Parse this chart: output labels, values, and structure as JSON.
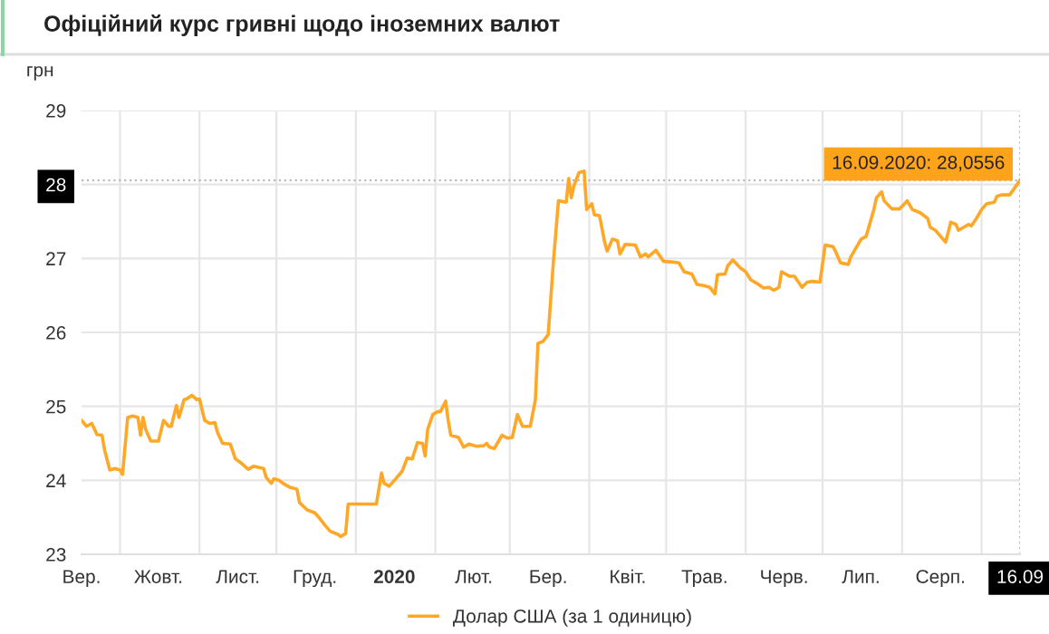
{
  "chart_data": {
    "type": "line",
    "title": "Офіційний курс гривні щодо іноземних валют",
    "ylabel": "грн",
    "xlim": [
      "2019-09-16",
      "2020-09-16"
    ],
    "ylim": [
      23,
      29
    ],
    "yticks": [
      23,
      24,
      25,
      26,
      27,
      28,
      29
    ],
    "xticks": [
      {
        "value": "2019-09-16",
        "label": "Вер."
      },
      {
        "value": "2019-10-01",
        "label": null
      },
      {
        "value": "2019-10-16",
        "label": "Жовт."
      },
      {
        "value": "2019-11-01",
        "label": null
      },
      {
        "value": "2019-11-16",
        "label": "Лист."
      },
      {
        "value": "2019-12-01",
        "label": null
      },
      {
        "value": "2019-12-16",
        "label": "Груд."
      },
      {
        "value": "2020-01-01",
        "label": null
      },
      {
        "value": "2020-01-16",
        "label": "2020"
      },
      {
        "value": "2020-02-01",
        "label": null
      },
      {
        "value": "2020-02-16",
        "label": "Лют."
      },
      {
        "value": "2020-03-01",
        "label": null
      },
      {
        "value": "2020-03-16",
        "label": "Бер."
      },
      {
        "value": "2020-04-01",
        "label": null
      },
      {
        "value": "2020-04-16",
        "label": "Квіт."
      },
      {
        "value": "2020-05-01",
        "label": null
      },
      {
        "value": "2020-05-16",
        "label": "Трав."
      },
      {
        "value": "2020-06-01",
        "label": null
      },
      {
        "value": "2020-06-16",
        "label": "Черв."
      },
      {
        "value": "2020-07-01",
        "label": null
      },
      {
        "value": "2020-07-16",
        "label": "Лип."
      },
      {
        "value": "2020-08-01",
        "label": null
      },
      {
        "value": "2020-08-16",
        "label": "Серп."
      },
      {
        "value": "2020-09-01",
        "label": null
      },
      {
        "value": "2020-09-16",
        "label": "16.09"
      }
    ],
    "grid": true,
    "ref_lines": [
      {
        "axis": "y",
        "value": 28.0556,
        "color": "#bbbbbb",
        "line_style": "dotted"
      },
      {
        "axis": "x",
        "value": "2020-09-16",
        "color": "#bbbbbb",
        "line_style": "dotted"
      }
    ],
    "legend": "bottom",
    "annotations": [
      {
        "text": "16.09.2020: 28,0556",
        "x": "2020-09-16",
        "y": 28.0556
      }
    ],
    "series": [
      {
        "name": "Долар США (за 1 одиницю)",
        "color": "#ffa726",
        "x": [
          "2019-09-16",
          "2019-09-18",
          "2019-09-20",
          "2019-09-22",
          "2019-09-24",
          "2019-09-25",
          "2019-09-27",
          "2019-09-29",
          "2019-10-01",
          "2019-10-02",
          "2019-10-04",
          "2019-10-06",
          "2019-10-08",
          "2019-10-09",
          "2019-10-10",
          "2019-10-11",
          "2019-10-13",
          "2019-10-16",
          "2019-10-18",
          "2019-10-20",
          "2019-10-21",
          "2019-10-23",
          "2019-10-24",
          "2019-10-26",
          "2019-10-27",
          "2019-10-29",
          "2019-10-31",
          "2019-11-01",
          "2019-11-03",
          "2019-11-05",
          "2019-11-07",
          "2019-11-08",
          "2019-11-10",
          "2019-11-13",
          "2019-11-15",
          "2019-11-17",
          "2019-11-20",
          "2019-11-22",
          "2019-11-26",
          "2019-11-27",
          "2019-11-29",
          "2019-11-30",
          "2019-12-02",
          "2019-12-04",
          "2019-12-06",
          "2019-12-09",
          "2019-12-10",
          "2019-12-13",
          "2019-12-16",
          "2019-12-18",
          "2019-12-20",
          "2019-12-22",
          "2019-12-25",
          "2019-12-26",
          "2019-12-28",
          "2019-12-29",
          "2020-01-01",
          "2020-01-06",
          "2020-01-09",
          "2020-01-11",
          "2020-01-12",
          "2020-01-14",
          "2020-01-16",
          "2020-01-18",
          "2020-01-19",
          "2020-01-21",
          "2020-01-23",
          "2020-01-25",
          "2020-01-27",
          "2020-01-28",
          "2020-01-29",
          "2020-01-31",
          "2020-02-02",
          "2020-02-03",
          "2020-02-05",
          "2020-02-06",
          "2020-02-07",
          "2020-02-10",
          "2020-02-12",
          "2020-02-14",
          "2020-02-17",
          "2020-02-20",
          "2020-02-21",
          "2020-02-22",
          "2020-02-24",
          "2020-02-27",
          "2020-02-29",
          "2020-03-02",
          "2020-03-04",
          "2020-03-06",
          "2020-03-09",
          "2020-03-11",
          "2020-03-12",
          "2020-03-14",
          "2020-03-16",
          "2020-03-18",
          "2020-03-20",
          "2020-03-23",
          "2020-03-24",
          "2020-03-25",
          "2020-03-26",
          "2020-03-28",
          "2020-03-30",
          "2020-03-31",
          "2020-04-02",
          "2020-04-03",
          "2020-04-05",
          "2020-04-07",
          "2020-04-08",
          "2020-04-10",
          "2020-04-12",
          "2020-04-13",
          "2020-04-15",
          "2020-04-19",
          "2020-04-21",
          "2020-04-23",
          "2020-04-24",
          "2020-04-27",
          "2020-04-30",
          "2020-05-04",
          "2020-05-06",
          "2020-05-08",
          "2020-05-11",
          "2020-05-13",
          "2020-05-16",
          "2020-05-18",
          "2020-05-20",
          "2020-05-21",
          "2020-05-24",
          "2020-05-25",
          "2020-05-27",
          "2020-05-30",
          "2020-06-01",
          "2020-06-03",
          "2020-06-06",
          "2020-06-08",
          "2020-06-10",
          "2020-06-12",
          "2020-06-14",
          "2020-06-15",
          "2020-06-18",
          "2020-06-20",
          "2020-06-21",
          "2020-06-23",
          "2020-06-25",
          "2020-06-27",
          "2020-06-30",
          "2020-07-02",
          "2020-07-05",
          "2020-07-06",
          "2020-07-08",
          "2020-07-11",
          "2020-07-12",
          "2020-07-14",
          "2020-07-16",
          "2020-07-18",
          "2020-07-21",
          "2020-07-22",
          "2020-07-24",
          "2020-07-25",
          "2020-07-28",
          "2020-07-31",
          "2020-08-02",
          "2020-08-03",
          "2020-08-05",
          "2020-08-08",
          "2020-08-11",
          "2020-08-12",
          "2020-08-14",
          "2020-08-16",
          "2020-08-18",
          "2020-08-20",
          "2020-08-22",
          "2020-08-23",
          "2020-08-25",
          "2020-08-27",
          "2020-08-28",
          "2020-08-30",
          "2020-09-01",
          "2020-09-03",
          "2020-09-06",
          "2020-09-07",
          "2020-09-09",
          "2020-09-12",
          "2020-09-16"
        ],
        "values": [
          24.81,
          24.73,
          24.77,
          24.62,
          24.61,
          24.41,
          24.14,
          24.16,
          24.14,
          24.08,
          24.85,
          24.87,
          24.85,
          24.61,
          24.85,
          24.69,
          24.53,
          24.53,
          24.81,
          24.73,
          24.73,
          25.01,
          24.85,
          25.09,
          25.1,
          25.15,
          25.09,
          25.1,
          24.81,
          24.77,
          24.78,
          24.65,
          24.5,
          24.49,
          24.29,
          24.24,
          24.15,
          24.19,
          24.16,
          24.04,
          23.96,
          24.02,
          24.0,
          23.95,
          23.91,
          23.88,
          23.7,
          23.6,
          23.56,
          23.48,
          23.39,
          23.31,
          23.27,
          23.24,
          23.28,
          23.68,
          23.68,
          23.68,
          23.68,
          24.1,
          23.96,
          23.92,
          24.0,
          24.08,
          24.12,
          24.3,
          24.29,
          24.51,
          24.5,
          24.33,
          24.69,
          24.89,
          24.93,
          24.93,
          25.07,
          24.81,
          24.61,
          24.58,
          24.45,
          24.49,
          24.46,
          24.47,
          24.5,
          24.45,
          24.43,
          24.61,
          24.57,
          24.58,
          24.89,
          24.73,
          24.73,
          25.09,
          25.85,
          25.88,
          25.97,
          26.94,
          27.78,
          27.76,
          28.08,
          27.82,
          27.98,
          28.16,
          28.18,
          27.66,
          27.74,
          27.59,
          27.58,
          27.22,
          27.1,
          27.26,
          27.24,
          27.06,
          27.19,
          27.18,
          27.02,
          27.06,
          27.02,
          27.11,
          26.96,
          26.95,
          26.94,
          26.82,
          26.79,
          26.65,
          26.63,
          26.61,
          26.52,
          26.78,
          26.79,
          26.9,
          26.98,
          26.87,
          26.82,
          26.71,
          26.65,
          26.6,
          26.61,
          26.57,
          26.61,
          26.82,
          26.76,
          26.76,
          26.71,
          26.61,
          26.68,
          26.69,
          26.68,
          27.18,
          27.16,
          27.1,
          26.94,
          26.92,
          27.02,
          27.14,
          27.26,
          27.3,
          27.66,
          27.82,
          27.9,
          27.78,
          27.67,
          27.67,
          27.74,
          27.78,
          27.66,
          27.62,
          27.54,
          27.42,
          27.38,
          27.3,
          27.22,
          27.49,
          27.46,
          27.38,
          27.42,
          27.46,
          27.44,
          27.54,
          27.66,
          27.74,
          27.76,
          27.84,
          27.86,
          27.86,
          28.0556
        ]
      }
    ]
  }
}
